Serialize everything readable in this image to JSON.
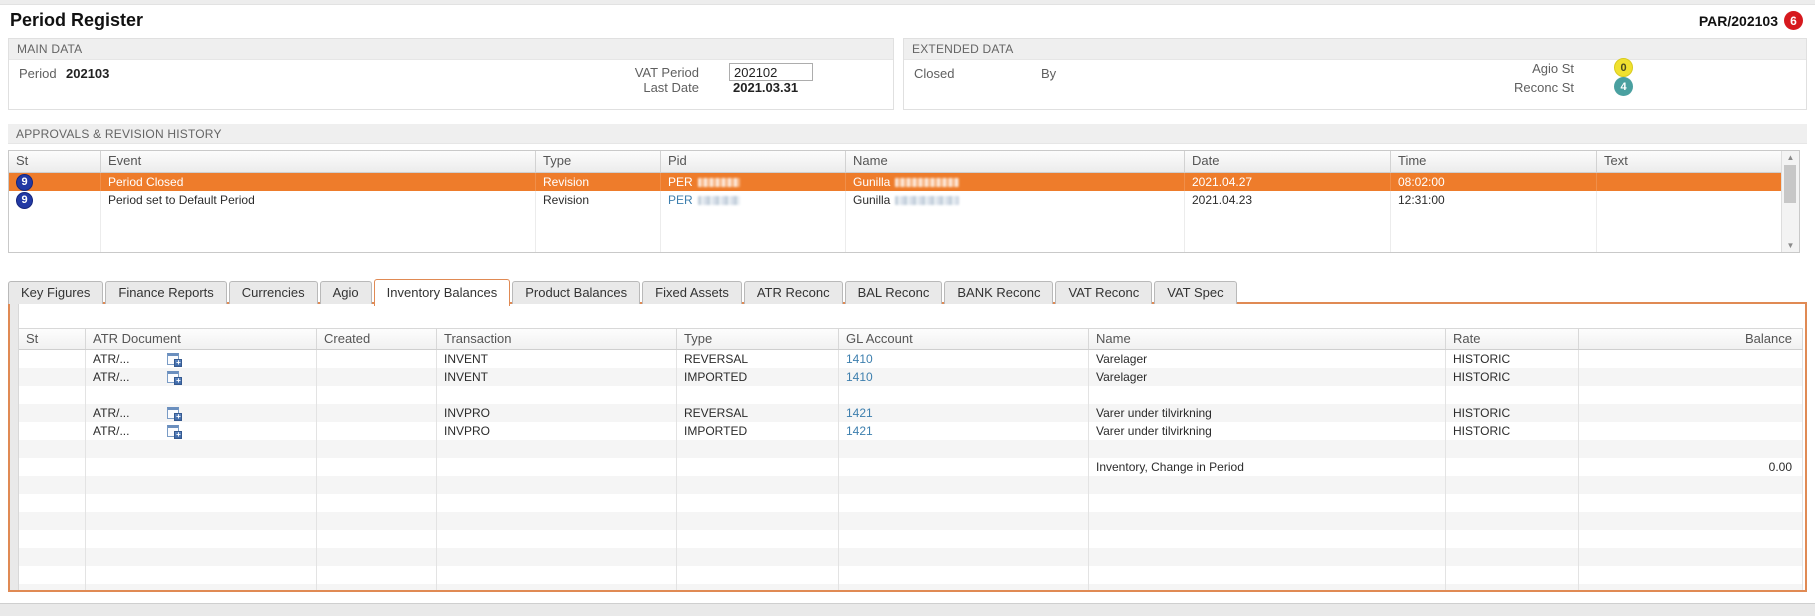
{
  "page": {
    "title": "Period Register",
    "doc_ref": "PAR/202103",
    "doc_status": "6"
  },
  "main_data": {
    "title": "MAIN DATA",
    "period_label": "Period",
    "period_value": "202103",
    "vat_period_label": "VAT Period",
    "vat_period_value": "202102",
    "last_date_label": "Last Date",
    "last_date_value": "2021.03.31"
  },
  "extended_data": {
    "title": "EXTENDED DATA",
    "closed_label": "Closed",
    "by_label": "By",
    "agio_label": "Agio St",
    "agio_value": "0",
    "reconc_label": "Reconc St",
    "reconc_value": "4"
  },
  "approvals": {
    "title": "APPROVALS & REVISION HISTORY",
    "columns": [
      "St",
      "Event",
      "Type",
      "Pid",
      "Name",
      "Date",
      "Time",
      "Text"
    ],
    "rows": [
      {
        "st": "9",
        "event": "Period Closed",
        "type": "Revision",
        "pid": "PER",
        "pid_redacted": true,
        "name": "Gunilla",
        "name_redacted": true,
        "date": "2021.04.27",
        "time": "08:02:00",
        "text": "",
        "selected": true
      },
      {
        "st": "9",
        "event": "Period set to Default Period",
        "type": "Revision",
        "pid": "PER",
        "pid_redacted": true,
        "name": "Gunilla",
        "name_redacted": true,
        "date": "2021.04.23",
        "time": "12:31:00",
        "text": "",
        "selected": false
      }
    ]
  },
  "tabs": {
    "active": "Inventory Balances",
    "items": [
      "Key Figures",
      "Finance Reports",
      "Currencies",
      "Agio",
      "Inventory Balances",
      "Product Balances",
      "Fixed Assets",
      "ATR Reconc",
      "BAL Reconc",
      "BANK Reconc",
      "VAT Reconc",
      "VAT Spec"
    ]
  },
  "inventory": {
    "columns": [
      "St",
      "ATR Document",
      "Created",
      "Transaction",
      "Type",
      "GL Account",
      "Name",
      "Rate",
      "Balance"
    ],
    "rows": [
      {
        "atr_doc": "ATR/...",
        "has_icon": true,
        "created": "",
        "transaction": "INVENT",
        "type": "REVERSAL",
        "gl_account": "1410",
        "name": "Varelager",
        "rate": "HISTORIC",
        "balance": ""
      },
      {
        "atr_doc": "ATR/...",
        "has_icon": true,
        "created": "",
        "transaction": "INVENT",
        "type": "IMPORTED",
        "gl_account": "1410",
        "name": "Varelager",
        "rate": "HISTORIC",
        "balance": ""
      },
      {},
      {
        "atr_doc": "ATR/...",
        "has_icon": true,
        "created": "",
        "transaction": "INVPRO",
        "type": "REVERSAL",
        "gl_account": "1421",
        "name": "Varer under tilvirkning",
        "rate": "HISTORIC",
        "balance": ""
      },
      {
        "atr_doc": "ATR/...",
        "has_icon": true,
        "created": "",
        "transaction": "INVPRO",
        "type": "IMPORTED",
        "gl_account": "1421",
        "name": "Varer under tilvirkning",
        "rate": "HISTORIC",
        "balance": ""
      },
      {},
      {
        "name": "Inventory, Change in Period",
        "balance": "0.00"
      }
    ]
  },
  "icons": {
    "atr_plus": "+",
    "scroll_up": "▲",
    "scroll_down": "▼"
  },
  "colors": {
    "selected_row": "#ee7c2b",
    "panel_border": "#e08a54",
    "link_blue": "#3d7fae",
    "badge_blue": "#2239a4",
    "badge_yellow": "#f0e12f",
    "badge_teal": "#4aa0a0",
    "badge_red": "#d6191e"
  }
}
